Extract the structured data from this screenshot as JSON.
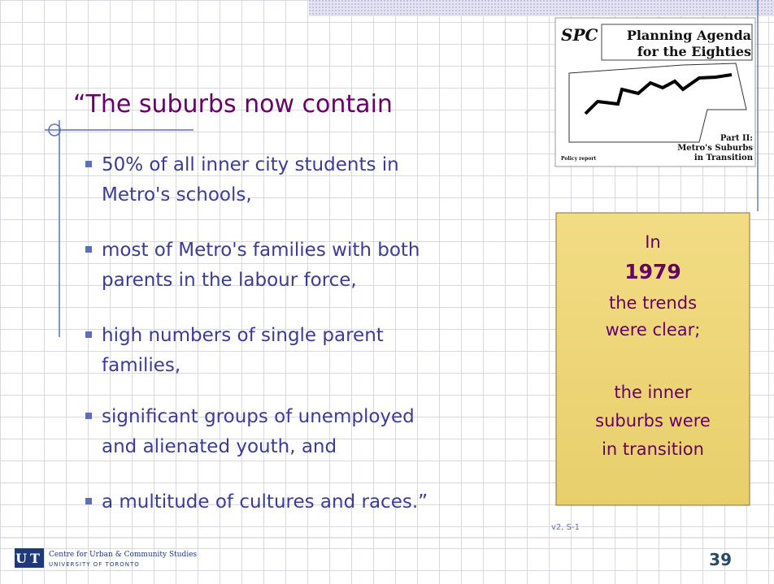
{
  "slide": {
    "title": "“The suburbs now contain",
    "bullets": [
      [
        "50% of all inner city students in",
        "Metro's schools,"
      ],
      [
        "most of Metro's families with both",
        "parents in the labour force,"
      ],
      [
        "high numbers of single parent",
        "families,"
      ],
      [
        "significant groups of unemployed",
        "and alienated youth, and"
      ],
      [
        "a multitude of cultures and races.”"
      ]
    ],
    "cover": {
      "logo": "SPC",
      "title": [
        "Planning Agenda",
        "for the Eighties"
      ],
      "part": [
        "Part II:",
        "Metro's Suburbs",
        "in Transition"
      ],
      "footer": "Policy report"
    },
    "callout": {
      "lines": [
        "In",
        "1979",
        "the trends",
        "were clear;"
      ],
      "lines2": [
        "the inner",
        "suburbs were",
        "in transition"
      ]
    },
    "footer": {
      "logo": "UT",
      "centre": "Centre for Urban & Community Studies",
      "university": "UNIVERSITY OF TORONTO",
      "version": "v2, S-1",
      "page": "39"
    }
  }
}
